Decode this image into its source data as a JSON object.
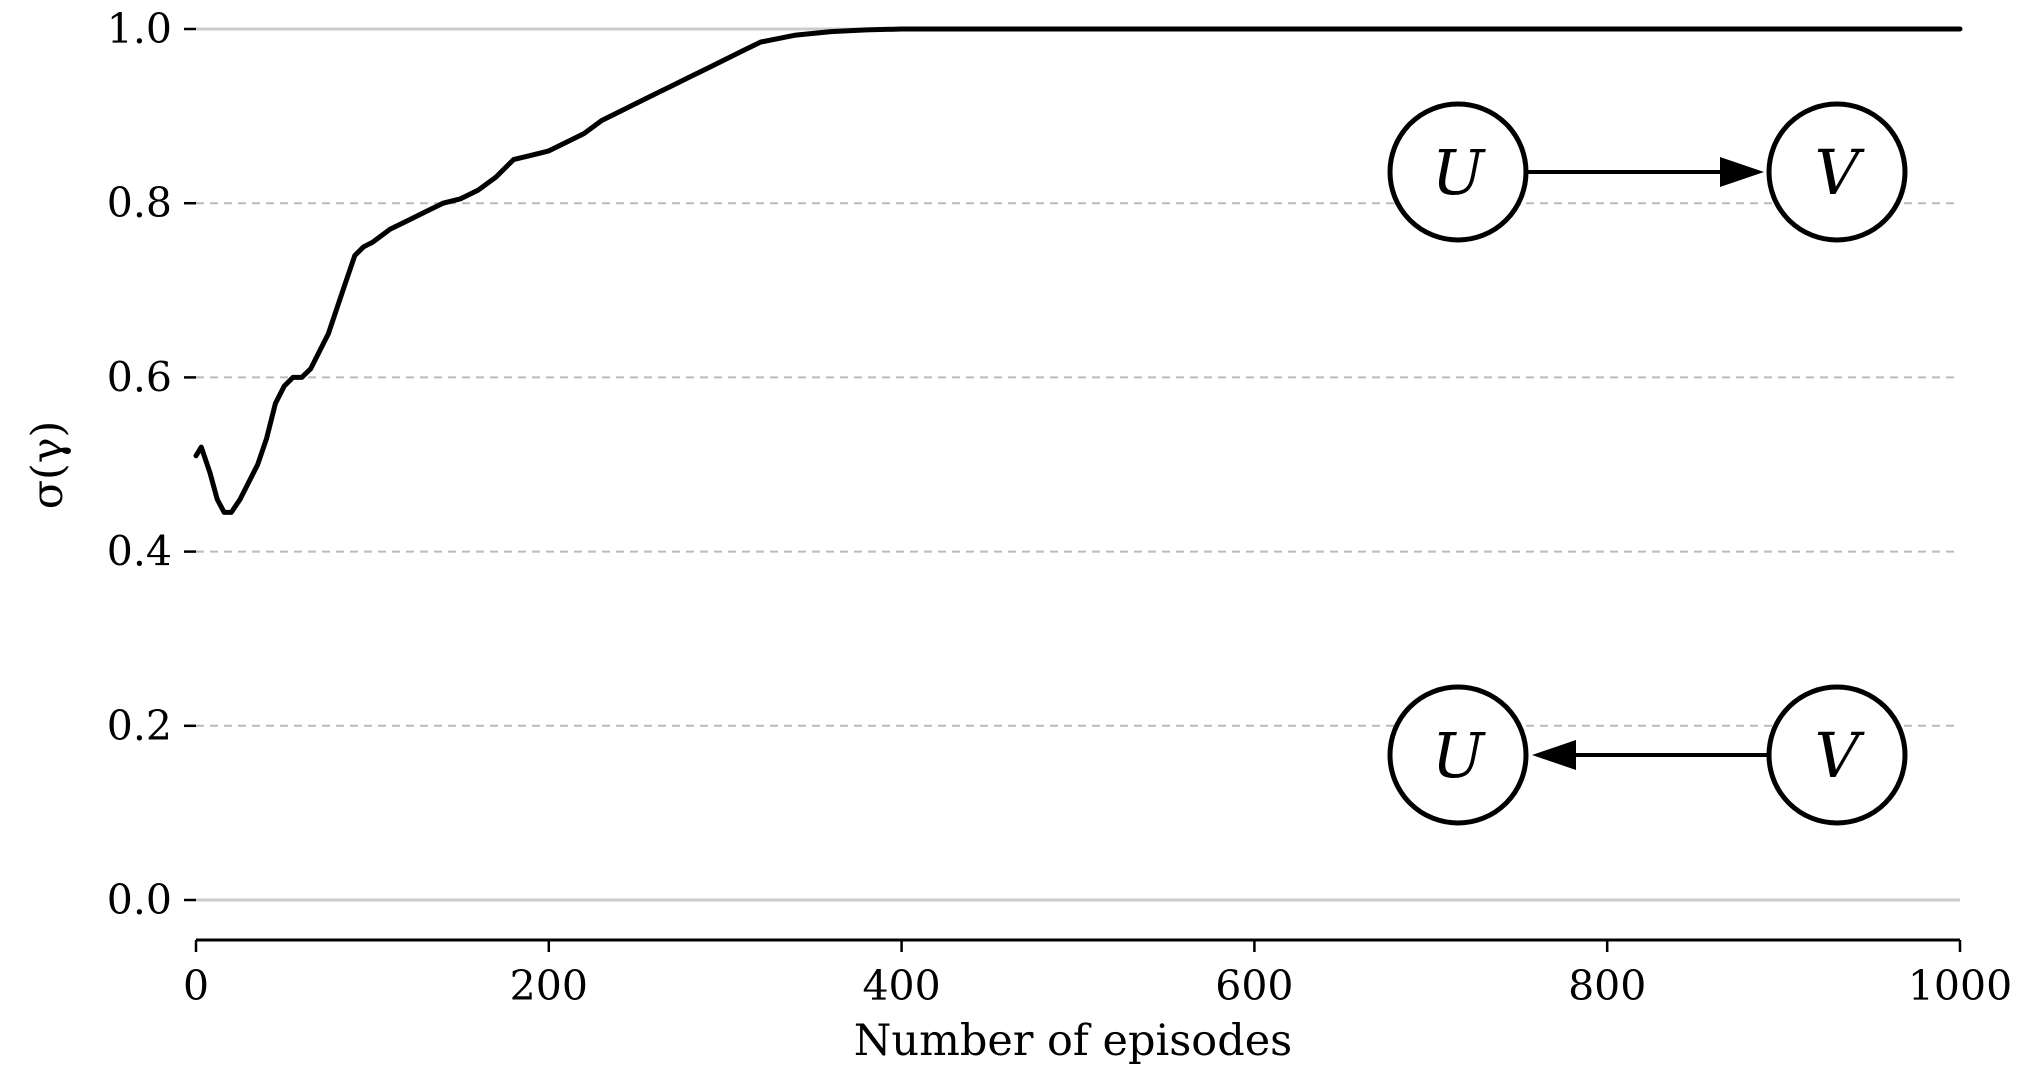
{
  "chart_data": {
    "type": "line",
    "title": "",
    "xlabel": "Number of episodes",
    "ylabel": "σ(γ)",
    "xlim": [
      0,
      1000
    ],
    "ylim": [
      -0.05,
      1.0
    ],
    "xticks": [
      "0",
      "200",
      "400",
      "600",
      "800",
      "1000"
    ],
    "yticks": [
      "0.0",
      "0.2",
      "0.4",
      "0.6",
      "0.8",
      "1.0"
    ],
    "grid": "horizontal dashed",
    "series": [
      {
        "color": "#000000",
        "x": [
          0,
          3,
          8,
          12,
          16,
          20,
          25,
          30,
          35,
          40,
          45,
          50,
          55,
          60,
          65,
          70,
          75,
          80,
          85,
          90,
          95,
          100,
          110,
          120,
          130,
          140,
          150,
          160,
          170,
          175,
          180,
          190,
          200,
          210,
          220,
          230,
          240,
          250,
          260,
          270,
          280,
          290,
          300,
          310,
          320,
          340,
          360,
          380,
          400,
          450,
          500,
          600,
          700,
          800,
          900,
          1000
        ],
        "y": [
          0.51,
          0.52,
          0.49,
          0.46,
          0.445,
          0.445,
          0.46,
          0.48,
          0.5,
          0.53,
          0.57,
          0.59,
          0.6,
          0.6,
          0.61,
          0.63,
          0.65,
          0.68,
          0.71,
          0.74,
          0.75,
          0.755,
          0.77,
          0.78,
          0.79,
          0.8,
          0.805,
          0.815,
          0.83,
          0.84,
          0.85,
          0.855,
          0.86,
          0.87,
          0.88,
          0.895,
          0.905,
          0.915,
          0.925,
          0.935,
          0.945,
          0.955,
          0.965,
          0.975,
          0.985,
          0.993,
          0.997,
          0.999,
          1.0,
          1.0,
          1.0,
          1.0,
          1.0,
          1.0,
          1.0,
          1.0
        ]
      }
    ]
  },
  "diagrams": [
    {
      "nodes": [
        "U",
        "V"
      ],
      "arrow": "U→V"
    },
    {
      "nodes": [
        "U",
        "V"
      ],
      "arrow": "V→U"
    }
  ]
}
